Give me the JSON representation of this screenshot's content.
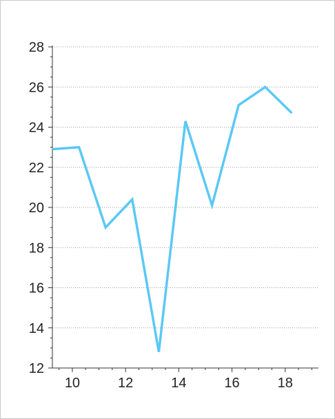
{
  "chart_data": {
    "type": "line",
    "title": "",
    "xlabel": "",
    "ylabel": "",
    "xlim": [
      9.25,
      19.25
    ],
    "ylim": [
      12,
      28
    ],
    "x_ticks": [
      "10",
      "12",
      "14",
      "16",
      "18"
    ],
    "y_ticks": [
      "12",
      "14",
      "16",
      "18",
      "20",
      "22",
      "24",
      "26",
      "28"
    ],
    "grid": "horizontal dotted",
    "legend": "none",
    "series": [
      {
        "color": "#5bc8f5",
        "x": [
          9.25,
          10.25,
          11.25,
          12.25,
          13.25,
          14.25,
          15.25,
          16.25,
          17.25,
          18.25
        ],
        "y": [
          22.9,
          23.0,
          19.0,
          20.4,
          12.8,
          24.3,
          20.1,
          25.1,
          26.0,
          24.7
        ]
      }
    ]
  }
}
